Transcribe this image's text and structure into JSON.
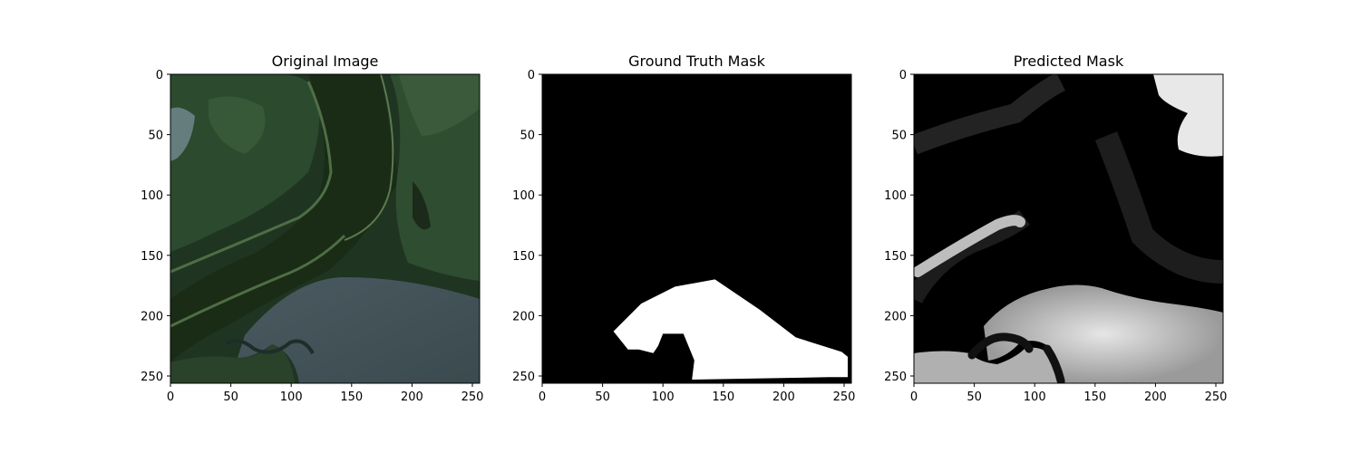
{
  "chart_data": [
    {
      "type": "image",
      "title": "Original Image",
      "xticks": [
        0,
        50,
        100,
        150,
        200,
        250
      ],
      "yticks": [
        0,
        50,
        100,
        150,
        200,
        250
      ],
      "xlim": [
        0,
        256
      ],
      "ylim": [
        256,
        0
      ]
    },
    {
      "type": "image",
      "title": "Ground Truth Mask",
      "xticks": [
        0,
        50,
        100,
        150,
        200,
        250
      ],
      "yticks": [
        0,
        50,
        100,
        150,
        200,
        250
      ],
      "xlim": [
        0,
        256
      ],
      "ylim": [
        256,
        0
      ],
      "mask_polygon": [
        [
          59,
          213
        ],
        [
          82,
          190
        ],
        [
          110,
          176
        ],
        [
          143,
          170
        ],
        [
          180,
          195
        ],
        [
          210,
          218
        ],
        [
          248,
          230
        ],
        [
          253,
          234
        ],
        [
          253,
          251
        ],
        [
          237,
          251
        ],
        [
          124,
          253
        ],
        [
          126,
          237
        ],
        [
          117,
          215
        ],
        [
          100,
          215
        ],
        [
          96,
          225
        ],
        [
          92,
          231
        ],
        [
          80,
          228
        ],
        [
          71,
          228
        ]
      ]
    },
    {
      "type": "image",
      "title": "Predicted Mask",
      "xticks": [
        0,
        50,
        100,
        150,
        200,
        250
      ],
      "yticks": [
        0,
        50,
        100,
        150,
        200,
        250
      ],
      "xlim": [
        0,
        256
      ],
      "ylim": [
        256,
        0
      ]
    }
  ],
  "colors": {
    "background": "#ffffff",
    "mask_foreground": "#ffffff",
    "mask_background": "#000000"
  }
}
